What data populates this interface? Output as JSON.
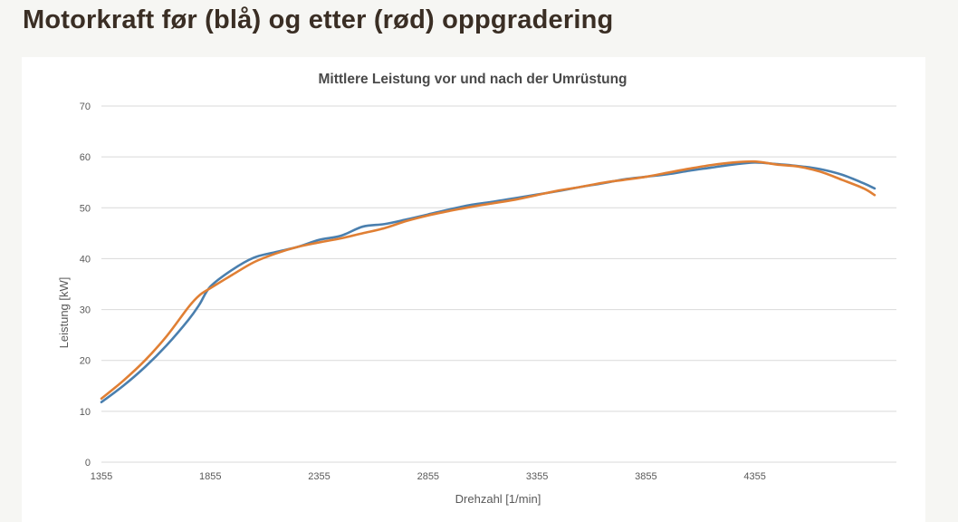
{
  "page": {
    "title": "Motorkraft før (blå) og etter (rød) oppgradering"
  },
  "colors": {
    "series_before": "#4a7fae",
    "series_after": "#e07f34",
    "grid": "#d9d9d9",
    "text": "#595959"
  },
  "chart_data": {
    "type": "line",
    "title": "Mittlere Leistung vor und nach der Umrüstung",
    "xlabel": "Drehzahl [1/min]",
    "ylabel": "Leistung [kW]",
    "x_ticks": [
      "1355",
      "1855",
      "2355",
      "2855",
      "3355",
      "3855",
      "4355"
    ],
    "y_ticks": [
      0,
      10,
      20,
      30,
      40,
      50,
      60,
      70
    ],
    "xlim": [
      1355,
      5005
    ],
    "ylim": [
      0,
      70
    ],
    "grid": true,
    "series": [
      {
        "color": "#4a7fae",
        "x": [
          1355,
          1455,
          1555,
          1655,
          1755,
          1805,
          1855,
          1955,
          2055,
          2155,
          2255,
          2355,
          2455,
          2555,
          2655,
          2755,
          2855,
          2955,
          3055,
          3155,
          3255,
          3355,
          3455,
          3555,
          3655,
          3755,
          3855,
          3955,
          4055,
          4155,
          4255,
          4355,
          4455,
          4555,
          4655,
          4755,
          4855,
          4905
        ],
        "y": [
          11.8,
          15.0,
          18.7,
          23.0,
          28.0,
          31.0,
          34.5,
          37.8,
          40.2,
          41.3,
          42.3,
          43.7,
          44.5,
          46.3,
          46.8,
          47.7,
          48.7,
          49.7,
          50.6,
          51.2,
          51.9,
          52.6,
          53.3,
          54.1,
          54.8,
          55.6,
          56.1,
          56.6,
          57.3,
          57.9,
          58.5,
          58.9,
          58.6,
          58.2,
          57.6,
          56.5,
          54.8,
          53.8
        ]
      },
      {
        "color": "#e07f34",
        "x": [
          1355,
          1455,
          1555,
          1655,
          1755,
          1805,
          1855,
          1955,
          2055,
          2155,
          2255,
          2355,
          2455,
          2555,
          2655,
          2755,
          2855,
          2955,
          3055,
          3155,
          3255,
          3355,
          3455,
          3555,
          3655,
          3755,
          3855,
          3955,
          4055,
          4155,
          4255,
          4355,
          4455,
          4555,
          4655,
          4755,
          4855,
          4905
        ],
        "y": [
          12.5,
          16.0,
          20.0,
          24.8,
          30.5,
          32.8,
          34.2,
          36.8,
          39.3,
          41.0,
          42.3,
          43.2,
          44.0,
          45.0,
          46.0,
          47.4,
          48.5,
          49.4,
          50.2,
          50.9,
          51.6,
          52.5,
          53.4,
          54.1,
          54.9,
          55.5,
          56.1,
          56.9,
          57.7,
          58.4,
          58.9,
          59.1,
          58.5,
          58.1,
          57.1,
          55.5,
          53.8,
          52.5
        ]
      }
    ]
  }
}
